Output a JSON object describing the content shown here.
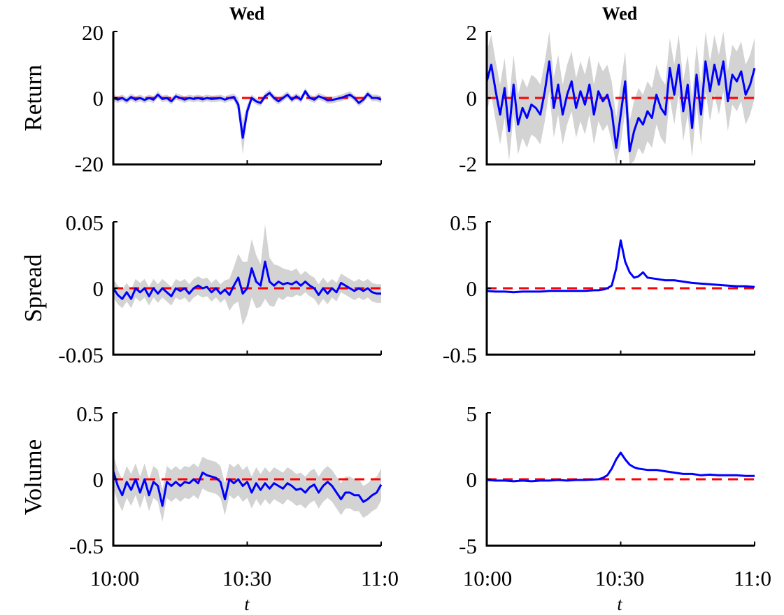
{
  "chart_data": [
    {
      "type": "line",
      "title": "Wed",
      "ylabel": "Return",
      "xlabel": "",
      "ylim": [
        -20,
        20
      ],
      "yticks": [
        "20",
        "0",
        "-20"
      ],
      "xlim": [
        0,
        60
      ],
      "series": [
        {
          "color": "#0000ff",
          "x": [
            0,
            1,
            2,
            3,
            4,
            5,
            6,
            7,
            8,
            9,
            10,
            11,
            12,
            13,
            14,
            15,
            16,
            17,
            18,
            19,
            20,
            21,
            22,
            23,
            24,
            25,
            26,
            27,
            28,
            29,
            30,
            31,
            32,
            33,
            34,
            35,
            36,
            37,
            38,
            39,
            40,
            41,
            42,
            43,
            44,
            45,
            46,
            47,
            48,
            49,
            50,
            51,
            52,
            53,
            54,
            55,
            56,
            57,
            58,
            59,
            60
          ],
          "values": [
            0,
            -0.5,
            0,
            -0.8,
            0.3,
            -0.5,
            0,
            -0.6,
            0,
            -0.5,
            1,
            -0.3,
            0,
            -1,
            0.5,
            0,
            -0.5,
            0,
            -0.3,
            0,
            -0.4,
            0,
            -0.3,
            -0.2,
            0,
            -0.5,
            0,
            0.3,
            -2,
            -12,
            -4,
            0,
            -1,
            -1.5,
            0.5,
            1.5,
            0,
            -1,
            0,
            1,
            -0.5,
            0.5,
            -0.5,
            2,
            0,
            -0.5,
            0.5,
            0,
            -0.7,
            -0.6,
            -0.3,
            0,
            0.5,
            1,
            0,
            -1.5,
            -0.5,
            1.2,
            0,
            0,
            -0.5
          ]
        }
      ],
      "band_width": [
        1,
        1,
        1,
        1,
        1,
        1,
        1,
        1,
        1,
        1,
        1,
        1,
        1,
        1,
        1,
        1,
        1,
        1,
        1,
        1,
        1,
        1,
        1,
        1,
        1,
        1,
        1,
        1,
        2,
        5,
        2,
        1,
        1,
        1,
        1,
        1,
        1,
        1,
        1,
        1,
        1,
        1,
        1,
        1,
        1,
        1,
        1,
        1,
        1,
        1,
        1,
        1,
        1,
        1,
        1,
        1,
        1,
        1,
        1,
        1,
        1
      ],
      "reference_line": {
        "y": 0,
        "color": "#ff0000",
        "style": "dashed"
      },
      "band_color": "#d3d3d3"
    },
    {
      "type": "line",
      "title": "Wed",
      "ylabel": "",
      "xlabel": "",
      "ylim": [
        -2,
        2
      ],
      "yticks": [
        "2",
        "0",
        "-2"
      ],
      "xlim": [
        0,
        60
      ],
      "series": [
        {
          "color": "#0000ff",
          "x": [
            0,
            1,
            2,
            3,
            4,
            5,
            6,
            7,
            8,
            9,
            10,
            11,
            12,
            13,
            14,
            15,
            16,
            17,
            18,
            19,
            20,
            21,
            22,
            23,
            24,
            25,
            26,
            27,
            28,
            29,
            30,
            31,
            32,
            33,
            34,
            35,
            36,
            37,
            38,
            39,
            40,
            41,
            42,
            43,
            44,
            45,
            46,
            47,
            48,
            49,
            50,
            51,
            52,
            53,
            54,
            55,
            56,
            57,
            58,
            59,
            60
          ],
          "values": [
            0.5,
            1.0,
            0.2,
            -0.5,
            0.3,
            -1.0,
            0.4,
            -0.8,
            -0.3,
            -0.6,
            -0.2,
            -0.3,
            -0.5,
            0.2,
            1.1,
            -0.3,
            0.4,
            -0.5,
            0.1,
            0.5,
            -0.3,
            0.2,
            -0.2,
            0.4,
            -0.5,
            0.2,
            -0.1,
            0.1,
            -0.4,
            -1.5,
            -0.5,
            0.5,
            -1.6,
            -1.0,
            -0.6,
            -0.8,
            -0.4,
            -0.6,
            0.1,
            -0.3,
            -0.5,
            0.9,
            0.1,
            1.0,
            -0.4,
            0.4,
            -0.9,
            0.7,
            -0.5,
            1.1,
            0.2,
            1.0,
            0.4,
            1.1,
            -0.1,
            0.7,
            0.5,
            0.8,
            0.1,
            0.4,
            0.9
          ]
        }
      ],
      "band_width": 0.9,
      "reference_line": {
        "y": 0,
        "color": "#ff0000",
        "style": "dashed"
      },
      "band_color": "#d3d3d3"
    },
    {
      "type": "line",
      "title": "",
      "ylabel": "Spread",
      "xlabel": "",
      "ylim": [
        -0.05,
        0.05
      ],
      "yticks": [
        "0.05",
        "0",
        "-0.05"
      ],
      "xlim": [
        0,
        60
      ],
      "series": [
        {
          "color": "#0000ff",
          "x": [
            0,
            1,
            2,
            3,
            4,
            5,
            6,
            7,
            8,
            9,
            10,
            11,
            12,
            13,
            14,
            15,
            16,
            17,
            18,
            19,
            20,
            21,
            22,
            23,
            24,
            25,
            26,
            27,
            28,
            29,
            30,
            31,
            32,
            33,
            34,
            35,
            36,
            37,
            38,
            39,
            40,
            41,
            42,
            43,
            44,
            45,
            46,
            47,
            48,
            49,
            50,
            51,
            52,
            53,
            54,
            55,
            56,
            57,
            58,
            59,
            60
          ],
          "values": [
            0,
            -0.005,
            -0.008,
            -0.003,
            -0.008,
            0,
            -0.003,
            0,
            -0.006,
            0,
            -0.004,
            0,
            -0.003,
            -0.006,
            0,
            -0.002,
            0,
            -0.004,
            0,
            0.002,
            0,
            0.001,
            -0.003,
            0,
            -0.004,
            -0.001,
            -0.005,
            0.002,
            0.008,
            -0.004,
            0,
            0.015,
            0.005,
            0.002,
            0.02,
            0.005,
            0.002,
            0.005,
            0.003,
            0.004,
            0.003,
            0.005,
            0.002,
            0.005,
            0.002,
            0,
            -0.005,
            0,
            -0.004,
            0,
            -0.003,
            0.004,
            0.002,
            0,
            -0.002,
            0,
            -0.002,
            0,
            -0.003,
            -0.004,
            -0.004
          ]
        }
      ],
      "band_width": [
        0.007,
        0.007,
        0.007,
        0.007,
        0.007,
        0.007,
        0.007,
        0.007,
        0.007,
        0.007,
        0.007,
        0.007,
        0.007,
        0.007,
        0.007,
        0.007,
        0.007,
        0.007,
        0.007,
        0.007,
        0.007,
        0.007,
        0.007,
        0.007,
        0.007,
        0.007,
        0.012,
        0.014,
        0.018,
        0.024,
        0.02,
        0.022,
        0.02,
        0.016,
        0.028,
        0.018,
        0.016,
        0.012,
        0.012,
        0.01,
        0.01,
        0.01,
        0.008,
        0.008,
        0.008,
        0.008,
        0.008,
        0.008,
        0.008,
        0.007,
        0.007,
        0.007,
        0.007,
        0.007,
        0.007,
        0.007,
        0.007,
        0.007,
        0.007,
        0.007,
        0.007
      ],
      "reference_line": {
        "y": 0,
        "color": "#ff0000",
        "style": "dashed"
      },
      "band_color": "#d3d3d3"
    },
    {
      "type": "line",
      "title": "",
      "ylabel": "",
      "xlabel": "",
      "ylim": [
        -0.5,
        0.5
      ],
      "yticks": [
        "0.5",
        "0",
        "-0.5"
      ],
      "xlim": [
        0,
        60
      ],
      "series": [
        {
          "color": "#0000ff",
          "x": [
            0,
            2,
            4,
            6,
            8,
            10,
            12,
            14,
            16,
            18,
            20,
            22,
            24,
            25,
            26,
            27,
            28,
            29,
            30,
            31,
            32,
            33,
            34,
            35,
            36,
            38,
            40,
            42,
            44,
            46,
            48,
            50,
            52,
            54,
            56,
            58,
            60
          ],
          "values": [
            -0.02,
            -0.025,
            -0.025,
            -0.03,
            -0.025,
            -0.025,
            -0.025,
            -0.02,
            -0.02,
            -0.02,
            -0.02,
            -0.02,
            -0.015,
            -0.015,
            -0.01,
            0.0,
            0.02,
            0.15,
            0.36,
            0.2,
            0.12,
            0.08,
            0.09,
            0.12,
            0.08,
            0.07,
            0.06,
            0.06,
            0.05,
            0.04,
            0.035,
            0.03,
            0.025,
            0.02,
            0.015,
            0.015,
            0.01
          ]
        }
      ],
      "band_width": 0.004,
      "reference_line": {
        "y": 0,
        "color": "#ff0000",
        "style": "dashed"
      },
      "band_color": "#d3d3d3"
    },
    {
      "type": "line",
      "title": "",
      "ylabel": "Volume",
      "xlabel": "t",
      "ylim": [
        -0.5,
        0.5
      ],
      "yticks": [
        "0.5",
        "0",
        "-0.5"
      ],
      "xticks": [
        "10:00",
        "10:30",
        "11:0"
      ],
      "xlim": [
        0,
        60
      ],
      "series": [
        {
          "color": "#0000ff",
          "x": [
            0,
            1,
            2,
            3,
            4,
            5,
            6,
            7,
            8,
            9,
            10,
            11,
            12,
            13,
            14,
            15,
            16,
            17,
            18,
            19,
            20,
            21,
            22,
            23,
            24,
            25,
            26,
            27,
            28,
            29,
            30,
            31,
            32,
            33,
            34,
            35,
            36,
            37,
            38,
            39,
            40,
            41,
            42,
            43,
            44,
            45,
            46,
            47,
            48,
            49,
            50,
            51,
            52,
            53,
            54,
            55,
            56,
            57,
            58,
            59,
            60
          ],
          "values": [
            0.06,
            -0.05,
            -0.12,
            -0.02,
            -0.08,
            0,
            -0.1,
            0,
            -0.12,
            -0.02,
            -0.05,
            -0.2,
            -0.02,
            -0.05,
            -0.02,
            -0.05,
            -0.02,
            -0.03,
            0,
            -0.03,
            0.05,
            0.03,
            0.02,
            0.01,
            -0.02,
            -0.15,
            0,
            -0.03,
            0,
            -0.05,
            -0.02,
            -0.1,
            -0.03,
            -0.08,
            -0.03,
            -0.07,
            -0.03,
            -0.05,
            -0.07,
            -0.03,
            -0.05,
            -0.08,
            -0.07,
            -0.1,
            -0.06,
            -0.04,
            -0.1,
            -0.05,
            -0.02,
            -0.05,
            -0.1,
            -0.15,
            -0.1,
            -0.1,
            -0.12,
            -0.12,
            -0.17,
            -0.15,
            -0.12,
            -0.1,
            -0.04
          ]
        }
      ],
      "band_width": 0.12,
      "reference_line": {
        "y": 0,
        "color": "#ff0000",
        "style": "dashed"
      },
      "band_color": "#d3d3d3"
    },
    {
      "type": "line",
      "title": "",
      "ylabel": "",
      "xlabel": "t",
      "ylim": [
        -5,
        5
      ],
      "yticks": [
        "5",
        "0",
        "-5"
      ],
      "xticks": [
        "10:00",
        "10:30",
        "11:0"
      ],
      "xlim": [
        0,
        60
      ],
      "series": [
        {
          "color": "#0000ff",
          "x": [
            0,
            2,
            4,
            6,
            8,
            10,
            12,
            14,
            16,
            18,
            20,
            22,
            24,
            25,
            26,
            27,
            28,
            29,
            30,
            31,
            32,
            33,
            34,
            36,
            38,
            40,
            42,
            44,
            46,
            48,
            50,
            52,
            54,
            56,
            58,
            60
          ],
          "values": [
            -0.05,
            -0.1,
            -0.1,
            -0.15,
            -0.1,
            -0.15,
            -0.1,
            -0.1,
            -0.05,
            -0.1,
            -0.05,
            -0.05,
            -0.02,
            0.0,
            0.1,
            0.3,
            0.8,
            1.5,
            2.0,
            1.5,
            1.1,
            0.9,
            0.8,
            0.7,
            0.7,
            0.6,
            0.5,
            0.4,
            0.4,
            0.3,
            0.35,
            0.3,
            0.3,
            0.3,
            0.25,
            0.25
          ]
        }
      ],
      "band_width": 0.05,
      "reference_line": {
        "y": 0,
        "color": "#ff0000",
        "style": "dashed"
      },
      "band_color": "#d3d3d3"
    }
  ]
}
